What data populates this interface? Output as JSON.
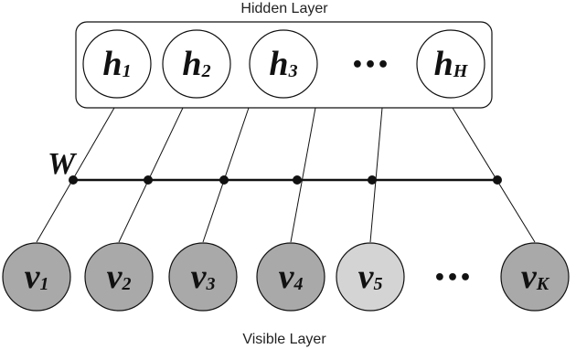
{
  "hidden_layer": {
    "title": "Hidden Layer",
    "nodes": [
      {
        "label": "h",
        "sub": "1"
      },
      {
        "label": "h",
        "sub": "2"
      },
      {
        "label": "h",
        "sub": "3"
      },
      {
        "label": "•••"
      },
      {
        "label": "h",
        "sub": "H"
      }
    ]
  },
  "weight_label": "W",
  "visible_layer": {
    "title": "Visible Layer",
    "nodes": [
      {
        "label": "v",
        "sub": "1"
      },
      {
        "label": "v",
        "sub": "2"
      },
      {
        "label": "v",
        "sub": "3"
      },
      {
        "label": "v",
        "sub": "4"
      },
      {
        "label": "v",
        "sub": "5"
      },
      {
        "label": "•••"
      },
      {
        "label": "v",
        "sub": "K"
      }
    ]
  }
}
